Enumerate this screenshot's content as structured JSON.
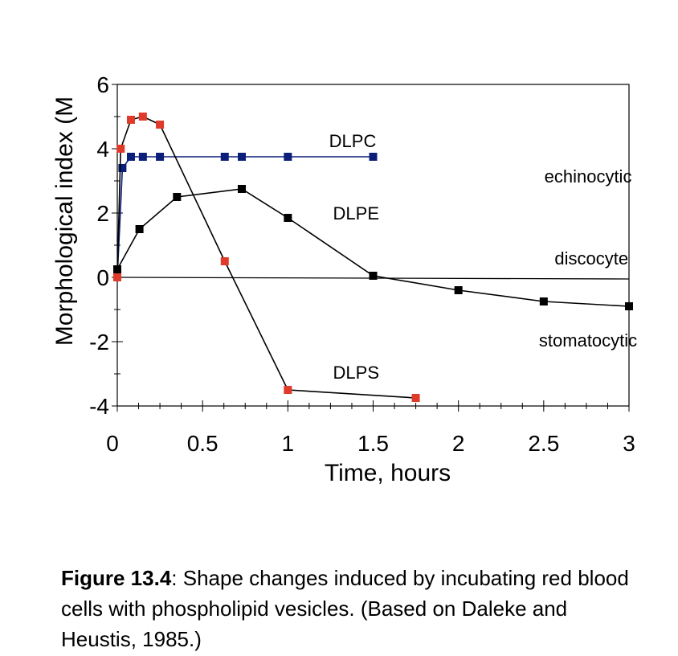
{
  "chart_data": {
    "type": "line",
    "title": "",
    "xlabel": "Time, hours",
    "ylabel": "Morphological index (M",
    "xlim": [
      0,
      3
    ],
    "ylim": [
      -4,
      6
    ],
    "x_ticks": [
      "0",
      "0.5",
      "1",
      "1.5",
      "2",
      "2.5",
      "3"
    ],
    "x_tick_values": [
      0,
      0.5,
      1,
      1.5,
      2,
      2.5,
      3
    ],
    "y_ticks": [
      "-4",
      "-2",
      "0",
      "2",
      "4",
      "6"
    ],
    "y_tick_values": [
      -4,
      -2,
      0,
      2,
      4,
      6
    ],
    "y_tick_minor": [
      -3,
      -1,
      1,
      3,
      5
    ],
    "x_tick_minor": [
      0.125,
      0.25,
      0.375,
      0.625,
      0.75,
      0.875,
      1.125,
      1.25,
      1.375,
      1.625,
      1.75,
      1.875,
      2.125,
      2.25,
      2.375,
      2.625,
      2.75,
      2.875
    ],
    "series": [
      {
        "name": "DLPC",
        "color": "#0b1f7a",
        "x": [
          0,
          0.03,
          0.08,
          0.15,
          0.25,
          0.63,
          0.73,
          1.0,
          1.5
        ],
        "y": [
          0.0,
          3.4,
          3.75,
          3.75,
          3.75,
          3.75,
          3.75,
          3.75,
          3.75
        ]
      },
      {
        "name": "DLPE",
        "color": "#000000",
        "x": [
          0,
          0.13,
          0.35,
          0.73,
          1.0,
          1.5,
          2.0,
          2.5,
          3.0
        ],
        "y": [
          0.25,
          1.5,
          2.5,
          2.75,
          1.85,
          0.05,
          -0.4,
          -0.75,
          -0.9
        ]
      },
      {
        "name": "DLPS",
        "color": "#e03a2a",
        "line_color": "#000000",
        "x": [
          0,
          0.02,
          0.08,
          0.15,
          0.25,
          0.63,
          1.0,
          1.75
        ],
        "y": [
          0.0,
          4.0,
          4.9,
          5.0,
          4.75,
          0.5,
          -3.5,
          -3.75
        ]
      }
    ],
    "baseline": {
      "label": "discocyte",
      "y_start": 0.0,
      "y_end": -0.05
    },
    "annotations": [
      {
        "text": "DLPC",
        "x": 1.38,
        "y": 4.05
      },
      {
        "text": "DLPE",
        "x": 1.4,
        "y": 1.8
      },
      {
        "text": "DLPS",
        "x": 1.4,
        "y": -3.15
      },
      {
        "text": "echinocytic",
        "x": 2.76,
        "y": 2.95
      },
      {
        "text": "discocyte",
        "x": 2.78,
        "y": 0.4
      },
      {
        "text": "stomatocytic",
        "x": 2.76,
        "y": -2.15
      }
    ]
  },
  "caption": {
    "label": "Figure 13.4",
    "text": ": Shape changes induced by incubating red blood cells with phospholipid vesicles. (Based on Daleke and Heustis, 1985.)"
  }
}
